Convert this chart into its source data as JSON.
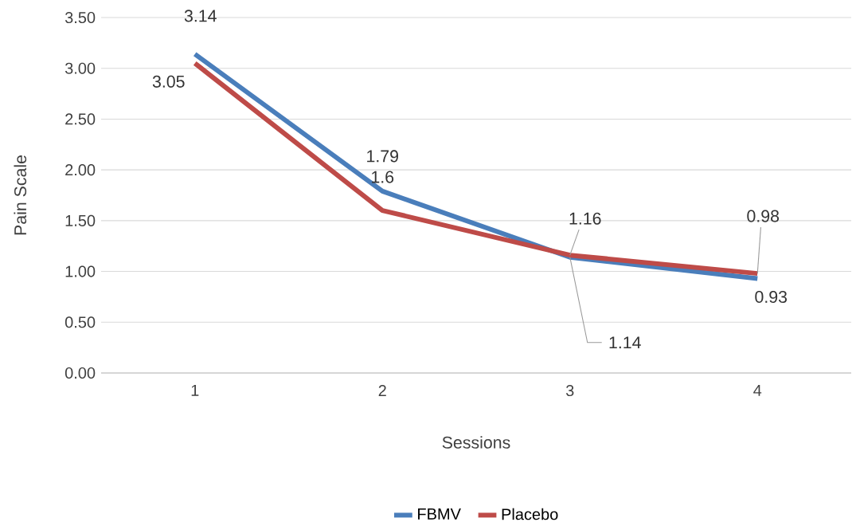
{
  "chart_data": {
    "type": "line",
    "xlabel": "Sessions",
    "ylabel": "Pain Scale",
    "categories": [
      "1",
      "2",
      "3",
      "4"
    ],
    "series": [
      {
        "name": "FBMV",
        "color": "#4a7ebb",
        "values": [
          3.14,
          1.79,
          1.14,
          0.93
        ],
        "value_labels": [
          "3.14",
          "1.79",
          "1.14",
          "0.93"
        ]
      },
      {
        "name": "Placebo",
        "color": "#be4b48",
        "values": [
          3.05,
          1.6,
          1.16,
          0.98
        ],
        "value_labels": [
          "3.05",
          "1.6",
          "1.16",
          "0.98"
        ]
      }
    ],
    "ylim": [
      0,
      3.5
    ],
    "yticks": [
      {
        "value": 0,
        "label": "0.00"
      },
      {
        "value": 0.5,
        "label": "0.50"
      },
      {
        "value": 1,
        "label": "1.00"
      },
      {
        "value": 1.5,
        "label": "1.50"
      },
      {
        "value": 2,
        "label": "2.00"
      },
      {
        "value": 2.5,
        "label": "2.50"
      },
      {
        "value": 3,
        "label": "3.00"
      },
      {
        "value": 3.5,
        "label": "3.50"
      }
    ],
    "grid": "y",
    "legend": "bottom",
    "marker": "none",
    "line_style": "solid"
  }
}
